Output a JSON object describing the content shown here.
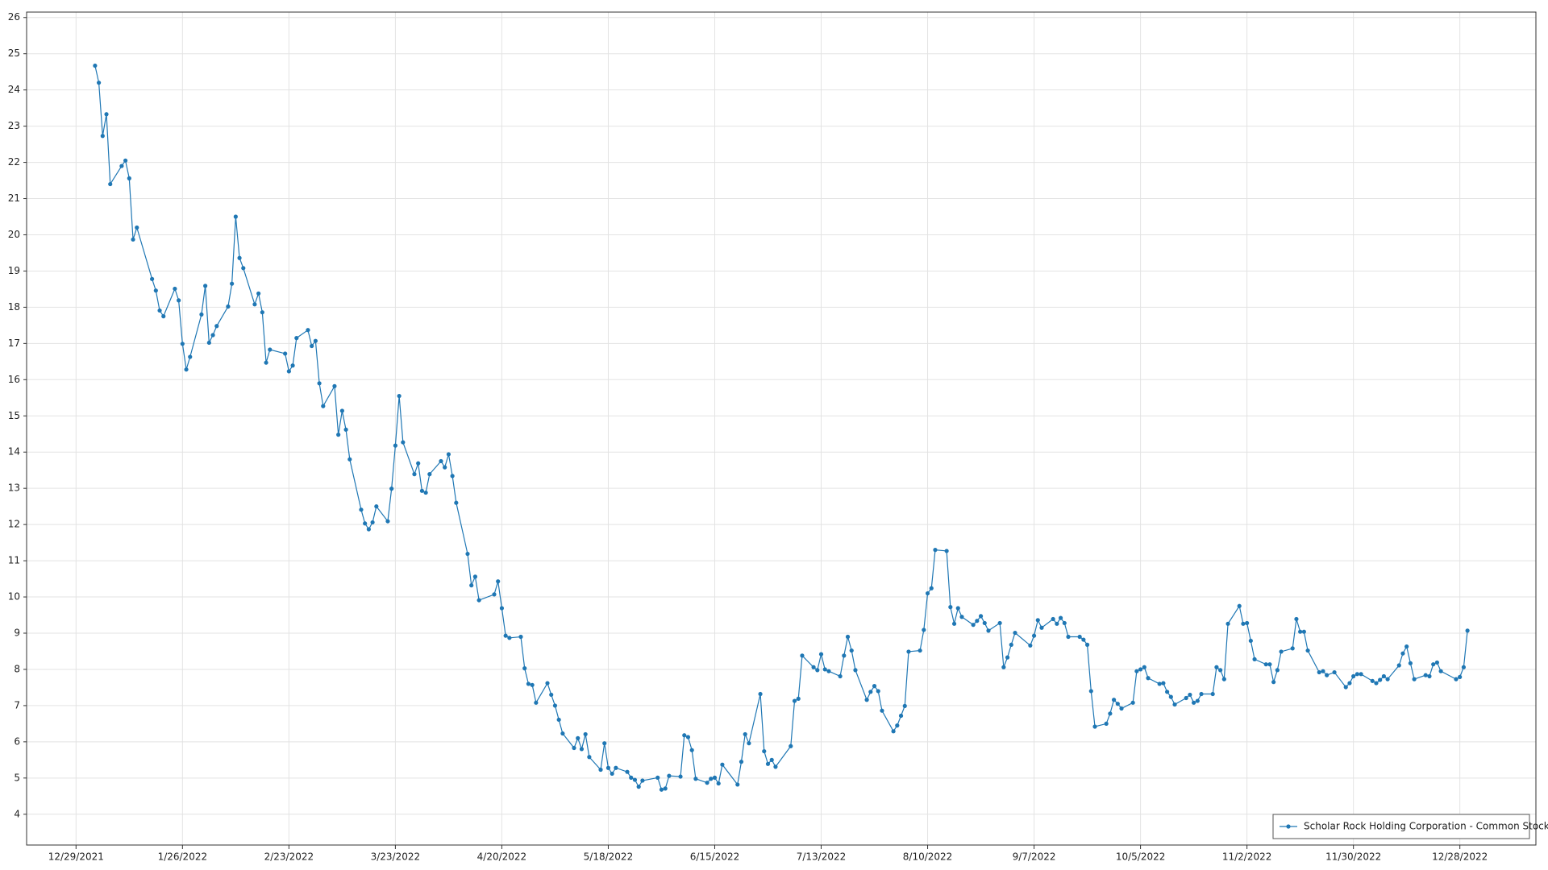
{
  "chart_data": {
    "type": "line",
    "x": [
      "1/3/2022",
      "1/4/2022",
      "1/5/2022",
      "1/6/2022",
      "1/7/2022",
      "1/10/2022",
      "1/11/2022",
      "1/12/2022",
      "1/13/2022",
      "1/14/2022",
      "1/18/2022",
      "1/19/2022",
      "1/20/2022",
      "1/21/2022",
      "1/24/2022",
      "1/25/2022",
      "1/26/2022",
      "1/27/2022",
      "1/28/2022",
      "1/31/2022",
      "2/1/2022",
      "2/2/2022",
      "2/3/2022",
      "2/4/2022",
      "2/7/2022",
      "2/8/2022",
      "2/9/2022",
      "2/10/2022",
      "2/11/2022",
      "2/14/2022",
      "2/15/2022",
      "2/16/2022",
      "2/17/2022",
      "2/18/2022",
      "2/22/2022",
      "2/23/2022",
      "2/24/2022",
      "2/25/2022",
      "2/28/2022",
      "3/1/2022",
      "3/2/2022",
      "3/3/2022",
      "3/4/2022",
      "3/7/2022",
      "3/8/2022",
      "3/9/2022",
      "3/10/2022",
      "3/11/2022",
      "3/14/2022",
      "3/15/2022",
      "3/16/2022",
      "3/17/2022",
      "3/18/2022",
      "3/21/2022",
      "3/22/2022",
      "3/23/2022",
      "3/24/2022",
      "3/25/2022",
      "3/28/2022",
      "3/29/2022",
      "3/30/2022",
      "3/31/2022",
      "4/1/2022",
      "4/4/2022",
      "4/5/2022",
      "4/6/2022",
      "4/7/2022",
      "4/8/2022",
      "4/11/2022",
      "4/12/2022",
      "4/13/2022",
      "4/14/2022",
      "4/18/2022",
      "4/19/2022",
      "4/20/2022",
      "4/21/2022",
      "4/22/2022",
      "4/25/2022",
      "4/26/2022",
      "4/27/2022",
      "4/28/2022",
      "4/29/2022",
      "5/2/2022",
      "5/3/2022",
      "5/4/2022",
      "5/5/2022",
      "5/6/2022",
      "5/9/2022",
      "5/10/2022",
      "5/11/2022",
      "5/12/2022",
      "5/13/2022",
      "5/16/2022",
      "5/17/2022",
      "5/18/2022",
      "5/19/2022",
      "5/20/2022",
      "5/23/2022",
      "5/24/2022",
      "5/25/2022",
      "5/26/2022",
      "5/27/2022",
      "5/31/2022",
      "6/1/2022",
      "6/2/2022",
      "6/3/2022",
      "6/6/2022",
      "6/7/2022",
      "6/8/2022",
      "6/9/2022",
      "6/10/2022",
      "6/13/2022",
      "6/14/2022",
      "6/15/2022",
      "6/16/2022",
      "6/17/2022",
      "6/21/2022",
      "6/22/2022",
      "6/23/2022",
      "6/24/2022",
      "6/27/2022",
      "6/28/2022",
      "6/29/2022",
      "6/30/2022",
      "7/1/2022",
      "7/5/2022",
      "7/6/2022",
      "7/7/2022",
      "7/8/2022",
      "7/11/2022",
      "7/12/2022",
      "7/13/2022",
      "7/14/2022",
      "7/15/2022",
      "7/18/2022",
      "7/19/2022",
      "7/20/2022",
      "7/21/2022",
      "7/22/2022",
      "7/25/2022",
      "7/26/2022",
      "7/27/2022",
      "7/28/2022",
      "7/29/2022",
      "8/1/2022",
      "8/2/2022",
      "8/3/2022",
      "8/4/2022",
      "8/5/2022",
      "8/8/2022",
      "8/9/2022",
      "8/10/2022",
      "8/11/2022",
      "8/12/2022",
      "8/15/2022",
      "8/16/2022",
      "8/17/2022",
      "8/18/2022",
      "8/19/2022",
      "8/22/2022",
      "8/23/2022",
      "8/24/2022",
      "8/25/2022",
      "8/26/2022",
      "8/29/2022",
      "8/30/2022",
      "8/31/2022",
      "9/1/2022",
      "9/2/2022",
      "9/6/2022",
      "9/7/2022",
      "9/8/2022",
      "9/9/2022",
      "9/12/2022",
      "9/13/2022",
      "9/14/2022",
      "9/15/2022",
      "9/16/2022",
      "9/19/2022",
      "9/20/2022",
      "9/21/2022",
      "9/22/2022",
      "9/23/2022",
      "9/26/2022",
      "9/27/2022",
      "9/28/2022",
      "9/29/2022",
      "9/30/2022",
      "10/3/2022",
      "10/4/2022",
      "10/5/2022",
      "10/6/2022",
      "10/7/2022",
      "10/10/2022",
      "10/11/2022",
      "10/12/2022",
      "10/13/2022",
      "10/14/2022",
      "10/17/2022",
      "10/18/2022",
      "10/19/2022",
      "10/20/2022",
      "10/21/2022",
      "10/24/2022",
      "10/25/2022",
      "10/26/2022",
      "10/27/2022",
      "10/28/2022",
      "10/31/2022",
      "11/1/2022",
      "11/2/2022",
      "11/3/2022",
      "11/4/2022",
      "11/7/2022",
      "11/8/2022",
      "11/9/2022",
      "11/10/2022",
      "11/11/2022",
      "11/14/2022",
      "11/15/2022",
      "11/16/2022",
      "11/17/2022",
      "11/18/2022",
      "11/21/2022",
      "11/22/2022",
      "11/23/2022",
      "11/25/2022",
      "11/28/2022",
      "11/29/2022",
      "11/30/2022",
      "12/1/2022",
      "12/2/2022",
      "12/5/2022",
      "12/6/2022",
      "12/7/2022",
      "12/8/2022",
      "12/9/2022",
      "12/12/2022",
      "12/13/2022",
      "12/14/2022",
      "12/15/2022",
      "12/16/2022",
      "12/19/2022",
      "12/20/2022",
      "12/21/2022",
      "12/22/2022",
      "12/23/2022",
      "12/27/2022",
      "12/28/2022",
      "12/29/2022",
      "12/30/2022"
    ],
    "series": [
      {
        "name": "Scholar Rock Holding Corporation - Common Stock",
        "color": "#1f77b4",
        "values": [
          24.67,
          24.2,
          22.73,
          23.33,
          21.4,
          21.9,
          22.05,
          21.56,
          19.87,
          20.2,
          18.78,
          18.46,
          17.91,
          17.75,
          18.51,
          18.19,
          16.99,
          16.28,
          16.63,
          17.8,
          18.59,
          17.02,
          17.23,
          17.48,
          18.02,
          18.65,
          20.5,
          19.36,
          19.08,
          18.08,
          18.38,
          17.86,
          16.47,
          16.83,
          16.72,
          16.23,
          16.39,
          17.15,
          17.37,
          16.93,
          17.07,
          15.9,
          15.27,
          15.82,
          14.48,
          15.14,
          14.62,
          13.8,
          12.41,
          12.03,
          11.87,
          12.06,
          12.5,
          12.09,
          12.99,
          14.18,
          15.55,
          14.27,
          13.39,
          13.69,
          12.93,
          12.88,
          13.39,
          13.75,
          13.58,
          13.94,
          13.34,
          12.6,
          11.19,
          10.32,
          10.56,
          9.91,
          10.07,
          10.43,
          9.69,
          8.93,
          8.87,
          8.9,
          8.03,
          7.6,
          7.57,
          7.08,
          7.62,
          7.3,
          7.0,
          6.61,
          6.23,
          5.83,
          6.1,
          5.8,
          6.21,
          5.58,
          5.23,
          5.96,
          5.28,
          5.12,
          5.28,
          5.17,
          5.01,
          4.95,
          4.76,
          4.93,
          5.01,
          4.68,
          4.71,
          5.06,
          5.04,
          6.18,
          6.13,
          5.77,
          4.98,
          4.87,
          4.98,
          5.01,
          4.85,
          5.37,
          4.82,
          5.45,
          6.21,
          5.96,
          7.32,
          5.74,
          5.39,
          5.5,
          5.31,
          5.88,
          7.13,
          7.19,
          8.38,
          8.06,
          7.98,
          8.42,
          8.0,
          7.95,
          7.81,
          8.38,
          8.9,
          8.52,
          7.98,
          7.16,
          7.38,
          7.54,
          7.4,
          6.86,
          6.29,
          6.45,
          6.72,
          6.99,
          8.49,
          8.52,
          9.09,
          10.1,
          10.24,
          11.3,
          11.27,
          9.72,
          9.26,
          9.69,
          9.45,
          9.23,
          9.34,
          9.47,
          9.28,
          9.07,
          9.28,
          8.06,
          8.33,
          8.68,
          9.01,
          8.66,
          8.93,
          9.36,
          9.15,
          9.39,
          9.26,
          9.42,
          9.28,
          8.9,
          8.9,
          8.82,
          8.68,
          7.4,
          6.42,
          6.5,
          6.78,
          7.16,
          7.05,
          6.92,
          7.08,
          7.95,
          8.0,
          8.06,
          7.76,
          7.6,
          7.62,
          7.38,
          7.24,
          7.03,
          7.21,
          7.3,
          7.08,
          7.13,
          7.32,
          7.32,
          8.06,
          7.98,
          7.73,
          9.26,
          9.75,
          9.26,
          9.28,
          8.79,
          8.28,
          8.14,
          8.14,
          7.65,
          7.98,
          8.49,
          8.58,
          9.39,
          9.04,
          9.04,
          8.52,
          7.92,
          7.95,
          7.84,
          7.92,
          7.51,
          7.62,
          7.81,
          7.87,
          7.87,
          7.68,
          7.62,
          7.71,
          7.81,
          7.73,
          8.11,
          8.44,
          8.63,
          8.17,
          7.73,
          7.84,
          7.81,
          8.14,
          8.19,
          7.95,
          7.73,
          7.79,
          8.06,
          9.07
        ]
      }
    ],
    "xlim": [
      "12/16/2021",
      "1/17/2023"
    ],
    "xticks": [
      "12/29/2021",
      "1/26/2022",
      "2/23/2022",
      "3/23/2022",
      "4/20/2022",
      "5/18/2022",
      "6/15/2022",
      "7/13/2022",
      "8/10/2022",
      "9/7/2022",
      "10/5/2022",
      "11/2/2022",
      "11/30/2022",
      "12/28/2022"
    ],
    "ylim": [
      3.15,
      26.15
    ],
    "yticks": [
      4,
      5,
      6,
      7,
      8,
      9,
      10,
      11,
      12,
      13,
      14,
      15,
      16,
      17,
      18,
      19,
      20,
      21,
      22,
      23,
      24,
      25,
      26
    ],
    "grid": true,
    "legend": "lower right"
  }
}
